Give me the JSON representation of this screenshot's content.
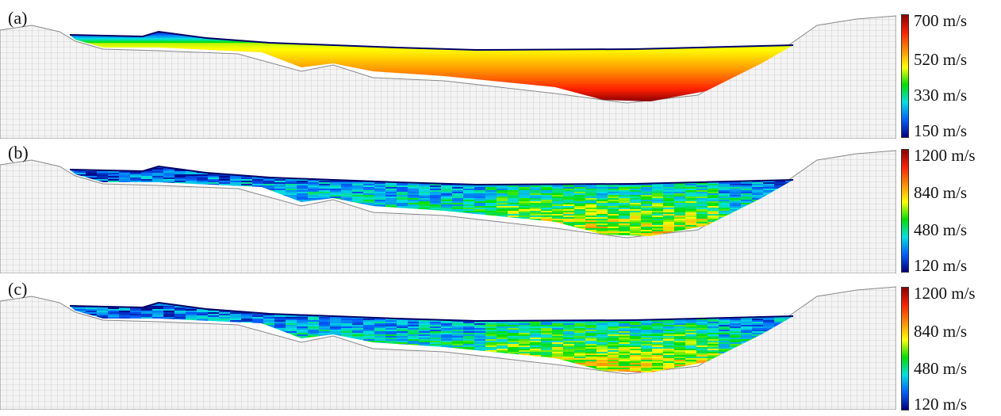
{
  "panels": [
    {
      "label": "(a)",
      "colorbar": {
        "ticks": [
          "700 m/s",
          "520 m/s",
          "330 m/s",
          "150 m/s"
        ],
        "gradient": [
          "#8b0000",
          "#ff2000",
          "#ff8c00",
          "#ffff00",
          "#00e000",
          "#00e0e0",
          "#0060ff",
          "#000080"
        ]
      },
      "fill": "smooth"
    },
    {
      "label": "(b)",
      "colorbar": {
        "ticks": [
          "1200 m/s",
          "840 m/s",
          "480 m/s",
          "120 m/s"
        ],
        "gradient": [
          "#8b0000",
          "#ff2000",
          "#ff8c00",
          "#ffff00",
          "#00e000",
          "#00e0e0",
          "#0060ff",
          "#000080"
        ]
      },
      "fill": "random"
    },
    {
      "label": "(c)",
      "colorbar": {
        "ticks": [
          "1200 m/s",
          "840 m/s",
          "480 m/s",
          "120 m/s"
        ],
        "gradient": [
          "#8b0000",
          "#ff2000",
          "#ff8c00",
          "#ffff00",
          "#00e000",
          "#00e0e0",
          "#0060ff",
          "#000080"
        ]
      },
      "fill": "random"
    }
  ],
  "colors": {
    "mesh_line": "#b5b5b5",
    "surface_line": "#000066"
  }
}
